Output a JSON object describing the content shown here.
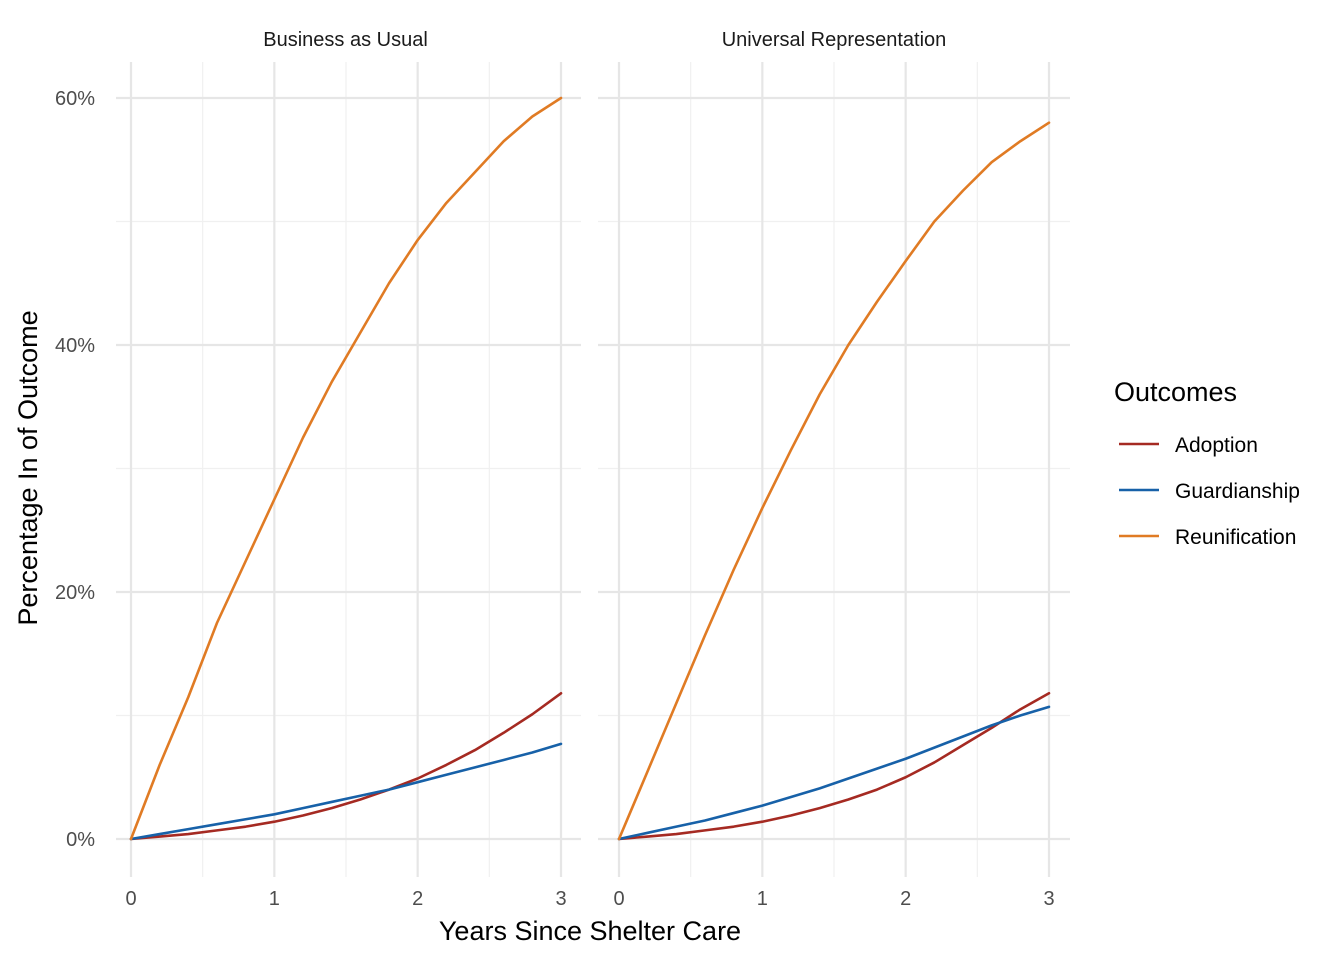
{
  "chart_data": {
    "type": "line",
    "xlabel": "Years Since Shelter Care",
    "ylabel": "Percentage In of Outcome",
    "xlim": [
      0,
      3
    ],
    "ylim": [
      0,
      60
    ],
    "x_ticks": [
      "0",
      "1",
      "2",
      "3"
    ],
    "y_ticks": [
      "0%",
      "20%",
      "40%",
      "60%"
    ],
    "grid": true,
    "legend": {
      "title": "Outcomes",
      "position": "right",
      "entries": [
        "Adoption",
        "Guardianship",
        "Reunification"
      ]
    },
    "colors": {
      "Adoption": "#a52a22",
      "Guardianship": "#1761a8",
      "Reunification": "#e07b24"
    },
    "x": [
      0,
      0.2,
      0.4,
      0.6,
      0.8,
      1.0,
      1.2,
      1.4,
      1.6,
      1.8,
      2.0,
      2.2,
      2.4,
      2.6,
      2.8,
      3.0
    ],
    "panels": [
      {
        "title": "Business as Usual",
        "series": [
          {
            "name": "Adoption",
            "values": [
              0,
              0.2,
              0.4,
              0.7,
              1.0,
              1.4,
              1.9,
              2.5,
              3.2,
              4.0,
              4.9,
              6.0,
              7.2,
              8.6,
              10.1,
              11.8
            ]
          },
          {
            "name": "Guardianship",
            "values": [
              0,
              0.4,
              0.8,
              1.2,
              1.6,
              2.0,
              2.5,
              3.0,
              3.5,
              4.0,
              4.6,
              5.2,
              5.8,
              6.4,
              7.0,
              7.7
            ]
          },
          {
            "name": "Reunification",
            "values": [
              0,
              6.0,
              11.5,
              17.5,
              22.5,
              27.5,
              32.5,
              37.0,
              41.0,
              45.0,
              48.5,
              51.5,
              54.0,
              56.5,
              58.5,
              60.0
            ]
          }
        ]
      },
      {
        "title": "Universal Representation",
        "series": [
          {
            "name": "Adoption",
            "values": [
              0,
              0.2,
              0.4,
              0.7,
              1.0,
              1.4,
              1.9,
              2.5,
              3.2,
              4.0,
              5.0,
              6.2,
              7.6,
              9.0,
              10.5,
              11.8
            ]
          },
          {
            "name": "Guardianship",
            "values": [
              0,
              0.5,
              1.0,
              1.5,
              2.1,
              2.7,
              3.4,
              4.1,
              4.9,
              5.7,
              6.5,
              7.4,
              8.3,
              9.2,
              10.0,
              10.7
            ]
          },
          {
            "name": "Reunification",
            "values": [
              0,
              5.5,
              11.0,
              16.5,
              21.8,
              26.8,
              31.5,
              36.0,
              40.0,
              43.5,
              46.8,
              50.0,
              52.5,
              54.8,
              56.5,
              58.0
            ]
          }
        ]
      }
    ]
  }
}
